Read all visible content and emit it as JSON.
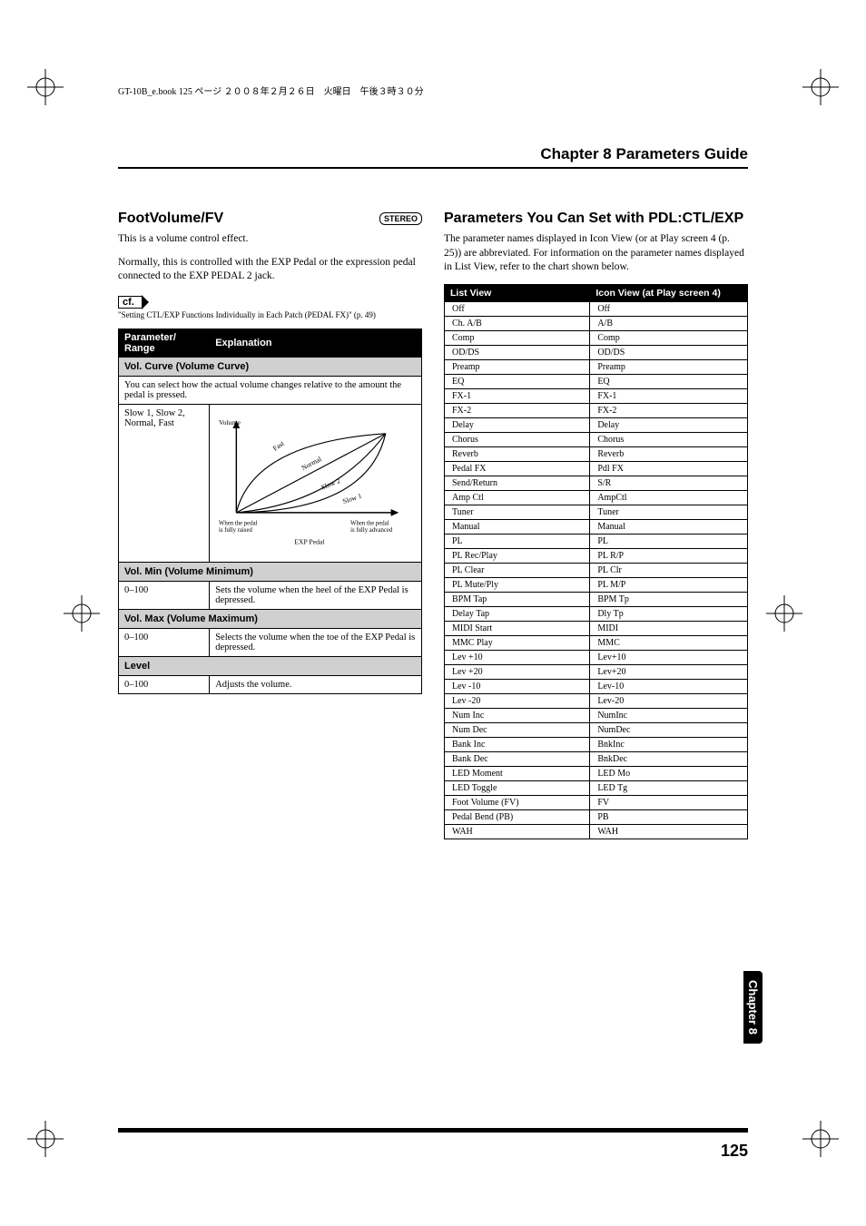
{
  "meta": {
    "header_meta": "GT-10B_e.book 125 ページ ２００８年２月２６日　火曜日　午後３時３０分",
    "chapter_header": "Chapter 8 Parameters Guide",
    "chapter_tab": "Chapter 8",
    "page_number": "125"
  },
  "left": {
    "title": "FootVolume/FV",
    "stereo_label": "STEREO",
    "intro": "This is a volume control effect.",
    "normally": "Normally, this is controlled with the EXP Pedal or the expression pedal connected to the EXP PEDAL 2 jack.",
    "cf_label": "cf.",
    "cf_text": "\"Setting CTL/EXP Functions Individually in Each Patch (PEDAL FX)\" (p. 49)",
    "table": {
      "th_param": "Parameter/\nRange",
      "th_expl": "Explanation",
      "sub_volcurve": "Vol. Curve (Volume Curve)",
      "volcurve_desc": "You can select how the actual volume changes relative to the amount the pedal is pressed.",
      "volcurve_range": "Slow 1, Slow 2, Normal, Fast",
      "diagram": {
        "axis_y": "Volume",
        "curve_fast": "Fast",
        "curve_normal": "Normal",
        "curve_slow2": "Slow 2",
        "curve_slow1": "Slow 1",
        "left_label": "When the pedal\nis fully raised",
        "right_label": "When the pedal\nis fully advanced",
        "x_label": "EXP Pedal"
      },
      "sub_volmin": "Vol. Min (Volume Minimum)",
      "volmin_range": "0–100",
      "volmin_desc": "Sets the volume when the heel of the EXP Pedal is depressed.",
      "sub_volmax": "Vol. Max (Volume Maximum)",
      "volmax_range": "0–100",
      "volmax_desc": "Selects the volume when the toe of the EXP Pedal is depressed.",
      "sub_level": "Level",
      "level_range": "0–100",
      "level_desc": "Adjusts the volume."
    }
  },
  "right": {
    "title": "Parameters You Can Set with PDL:CTL/EXP",
    "intro": "The parameter names displayed in Icon View (or at Play screen 4 (p. 25)) are abbreviated. For information on the parameter names displayed in List View, refer to the chart shown below.",
    "th_list": "List View",
    "th_icon": "Icon View (at Play screen 4)",
    "rows": [
      [
        "Off",
        "Off"
      ],
      [
        "Ch. A/B",
        "A/B"
      ],
      [
        "Comp",
        "Comp"
      ],
      [
        "OD/DS",
        "OD/DS"
      ],
      [
        "Preamp",
        "Preamp"
      ],
      [
        "EQ",
        "EQ"
      ],
      [
        "FX-1",
        "FX-1"
      ],
      [
        "FX-2",
        "FX-2"
      ],
      [
        "Delay",
        "Delay"
      ],
      [
        "Chorus",
        "Chorus"
      ],
      [
        "Reverb",
        "Reverb"
      ],
      [
        "Pedal FX",
        "Pdl FX"
      ],
      [
        "Send/Return",
        "S/R"
      ],
      [
        "Amp Ctl",
        "AmpCtl"
      ],
      [
        "Tuner",
        "Tuner"
      ],
      [
        "Manual",
        "Manual"
      ],
      [
        "PL",
        "PL"
      ],
      [
        "PL Rec/Play",
        "PL R/P"
      ],
      [
        "PL Clear",
        "PL Clr"
      ],
      [
        "PL Mute/Ply",
        "PL M/P"
      ],
      [
        "BPM Tap",
        "BPM Tp"
      ],
      [
        "Delay Tap",
        "Dly Tp"
      ],
      [
        "MIDI Start",
        "MIDI"
      ],
      [
        "MMC Play",
        "MMC"
      ],
      [
        "Lev +10",
        "Lev+10"
      ],
      [
        "Lev +20",
        "Lev+20"
      ],
      [
        "Lev -10",
        "Lev-10"
      ],
      [
        "Lev -20",
        "Lev-20"
      ],
      [
        "Num Inc",
        "NumInc"
      ],
      [
        "Num Dec",
        "NumDec"
      ],
      [
        "Bank Inc",
        "BnkInc"
      ],
      [
        "Bank Dec",
        "BnkDec"
      ],
      [
        "LED Moment",
        "LED Mo"
      ],
      [
        "LED Toggle",
        "LED Tg"
      ],
      [
        "Foot Volume (FV)",
        "FV"
      ],
      [
        "Pedal Bend (PB)",
        "PB"
      ],
      [
        "WAH",
        "WAH"
      ]
    ]
  }
}
